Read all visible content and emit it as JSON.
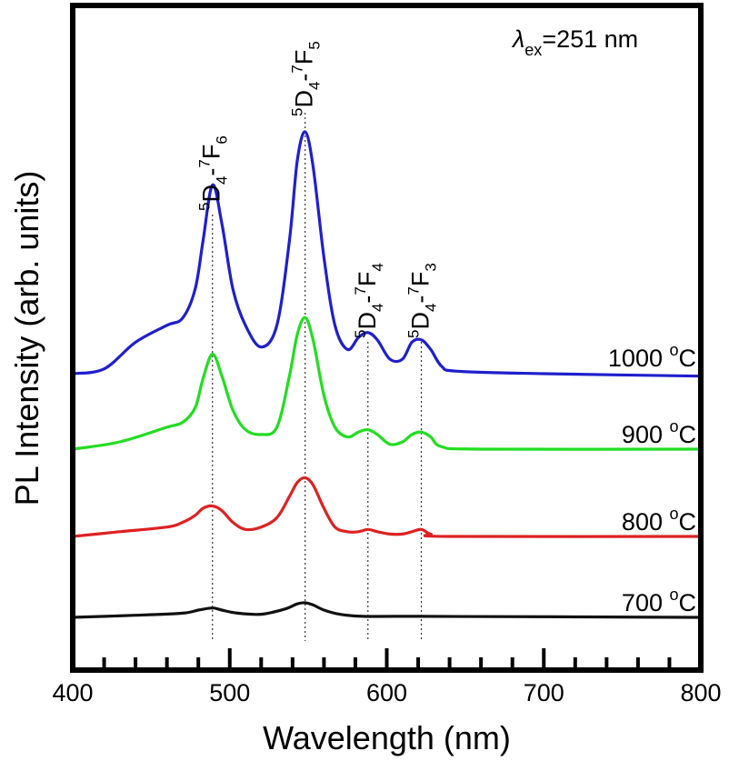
{
  "chart_data": {
    "type": "line",
    "title": "",
    "xlabel": "Wavelength (nm)",
    "ylabel": "PL Intensity (arb. units)",
    "xlim": [
      400,
      800
    ],
    "x_ticks": [
      400,
      500,
      600,
      700,
      800
    ],
    "x_ticks_labels": [
      "400",
      "500",
      "600",
      "700",
      "800"
    ],
    "minor_x_step": 20,
    "y_ticks_shown": false,
    "excitation": {
      "symbol": "λ",
      "subscript": "ex",
      "value": "=251 nm"
    },
    "stacked_offset": true,
    "series": [
      {
        "name": "1000 °C",
        "label_value": "1000 ",
        "label_unit": "C",
        "color": "#1f1fcc",
        "baseline": 0.0,
        "points": [
          [
            400,
            0.0
          ],
          [
            420,
            0.02
          ],
          [
            440,
            0.13
          ],
          [
            460,
            0.2
          ],
          [
            470,
            0.23
          ],
          [
            478,
            0.35
          ],
          [
            483,
            0.55
          ],
          [
            489,
            0.78
          ],
          [
            495,
            0.62
          ],
          [
            502,
            0.35
          ],
          [
            510,
            0.2
          ],
          [
            520,
            0.11
          ],
          [
            530,
            0.2
          ],
          [
            538,
            0.55
          ],
          [
            543,
            0.88
          ],
          [
            548,
            1.0
          ],
          [
            553,
            0.86
          ],
          [
            560,
            0.48
          ],
          [
            567,
            0.2
          ],
          [
            575,
            0.1
          ],
          [
            582,
            0.15
          ],
          [
            588,
            0.17
          ],
          [
            594,
            0.14
          ],
          [
            602,
            0.06
          ],
          [
            610,
            0.06
          ],
          [
            616,
            0.13
          ],
          [
            622,
            0.14
          ],
          [
            628,
            0.1
          ],
          [
            635,
            0.03
          ],
          [
            645,
            0.01
          ],
          [
            700,
            0.0
          ],
          [
            800,
            -0.01
          ]
        ]
      },
      {
        "name": "900 °C",
        "label_value": "900 ",
        "label_unit": "C",
        "color": "#22dd22",
        "baseline": 0.0,
        "points": [
          [
            400,
            0.0
          ],
          [
            430,
            0.03
          ],
          [
            460,
            0.09
          ],
          [
            470,
            0.11
          ],
          [
            478,
            0.17
          ],
          [
            483,
            0.29
          ],
          [
            489,
            0.39
          ],
          [
            495,
            0.3
          ],
          [
            502,
            0.16
          ],
          [
            510,
            0.08
          ],
          [
            520,
            0.06
          ],
          [
            530,
            0.09
          ],
          [
            538,
            0.3
          ],
          [
            543,
            0.47
          ],
          [
            548,
            0.54
          ],
          [
            553,
            0.45
          ],
          [
            560,
            0.22
          ],
          [
            567,
            0.09
          ],
          [
            575,
            0.05
          ],
          [
            582,
            0.07
          ],
          [
            588,
            0.08
          ],
          [
            594,
            0.06
          ],
          [
            602,
            0.02
          ],
          [
            610,
            0.03
          ],
          [
            616,
            0.06
          ],
          [
            622,
            0.07
          ],
          [
            628,
            0.05
          ],
          [
            635,
            0.01
          ],
          [
            660,
            0.0
          ],
          [
            800,
            0.0
          ]
        ]
      },
      {
        "name": "800 °C",
        "label_value": "800 ",
        "label_unit": "C",
        "color": "#dd2222",
        "baseline": 0.0,
        "points": [
          [
            400,
            0.0
          ],
          [
            430,
            0.02
          ],
          [
            460,
            0.04
          ],
          [
            470,
            0.06
          ],
          [
            478,
            0.09
          ],
          [
            483,
            0.12
          ],
          [
            489,
            0.13
          ],
          [
            495,
            0.11
          ],
          [
            502,
            0.06
          ],
          [
            510,
            0.03
          ],
          [
            520,
            0.04
          ],
          [
            530,
            0.08
          ],
          [
            538,
            0.17
          ],
          [
            543,
            0.23
          ],
          [
            548,
            0.25
          ],
          [
            553,
            0.22
          ],
          [
            560,
            0.12
          ],
          [
            567,
            0.04
          ],
          [
            575,
            0.02
          ],
          [
            582,
            0.02
          ],
          [
            588,
            0.03
          ],
          [
            594,
            0.02
          ],
          [
            602,
            0.01
          ],
          [
            610,
            0.01
          ],
          [
            616,
            0.02
          ],
          [
            622,
            0.03
          ],
          [
            628,
            0.01
          ],
          [
            640,
            0.0
          ],
          [
            800,
            0.0
          ]
        ]
      },
      {
        "name": "700 °C",
        "label_value": "700 ",
        "label_unit": "C",
        "color": "#111111",
        "baseline": 0.0,
        "points": [
          [
            400,
            0.0
          ],
          [
            440,
            0.01
          ],
          [
            470,
            0.02
          ],
          [
            480,
            0.035
          ],
          [
            489,
            0.045
          ],
          [
            495,
            0.035
          ],
          [
            505,
            0.02
          ],
          [
            520,
            0.015
          ],
          [
            535,
            0.04
          ],
          [
            543,
            0.065
          ],
          [
            548,
            0.07
          ],
          [
            553,
            0.06
          ],
          [
            560,
            0.035
          ],
          [
            570,
            0.015
          ],
          [
            585,
            0.005
          ],
          [
            620,
            0.005
          ],
          [
            800,
            0.0
          ]
        ]
      }
    ],
    "transitions": [
      {
        "x": 489,
        "sup1": "5",
        "main1": "D",
        "sub1": "4",
        "dash": "-",
        "sup2": "7",
        "main2": "F",
        "sub2": "6"
      },
      {
        "x": 548,
        "sup1": "5",
        "main1": "D",
        "sub1": "4",
        "dash": "-",
        "sup2": "7",
        "main2": "F",
        "sub2": "5"
      },
      {
        "x": 588,
        "sup1": "5",
        "main1": "D",
        "sub1": "4",
        "dash": "-",
        "sup2": "7",
        "main2": "F",
        "sub2": "4"
      },
      {
        "x": 622,
        "sup1": "5",
        "main1": "D",
        "sub1": "4",
        "dash": "-",
        "sup2": "7",
        "main2": "F",
        "sub2": "3"
      }
    ],
    "degree_symbol": "o"
  }
}
